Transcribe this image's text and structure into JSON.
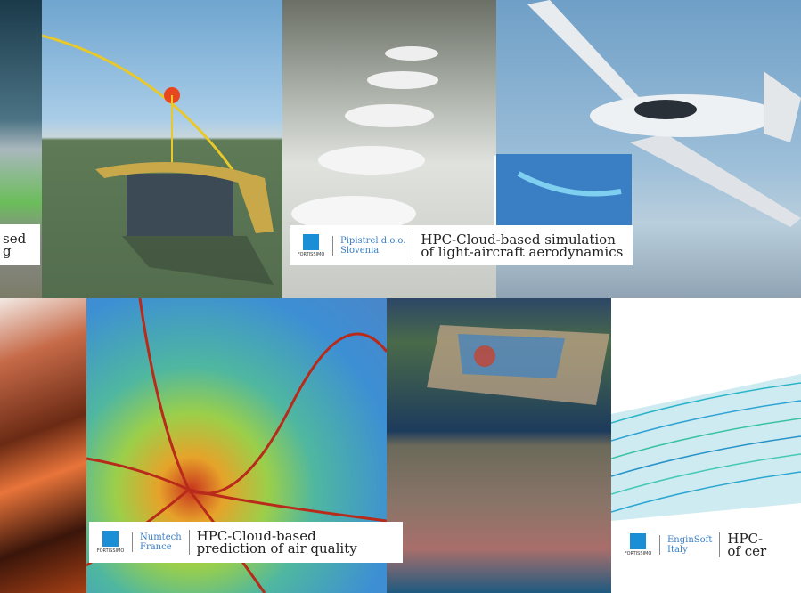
{
  "captions": [
    {
      "title": [
        "sed",
        "g"
      ]
    },
    {
      "logo": "FORTISSIMO",
      "company": "Pipistrel d.o.o.",
      "country": "Slovenia",
      "title": [
        "HPC-Cloud-based simulation",
        "of light-aircraft aerodynamics"
      ]
    },
    {
      "logo": "FORTISSIMO",
      "company": "Numtech",
      "country": "France",
      "title": [
        "HPC-Cloud-based",
        "prediction of air quality"
      ]
    },
    {
      "logo": "FORTISSIMO",
      "company": "EnginSoft",
      "country": "Italy",
      "title": [
        "HPC-",
        "of cer"
      ]
    }
  ]
}
